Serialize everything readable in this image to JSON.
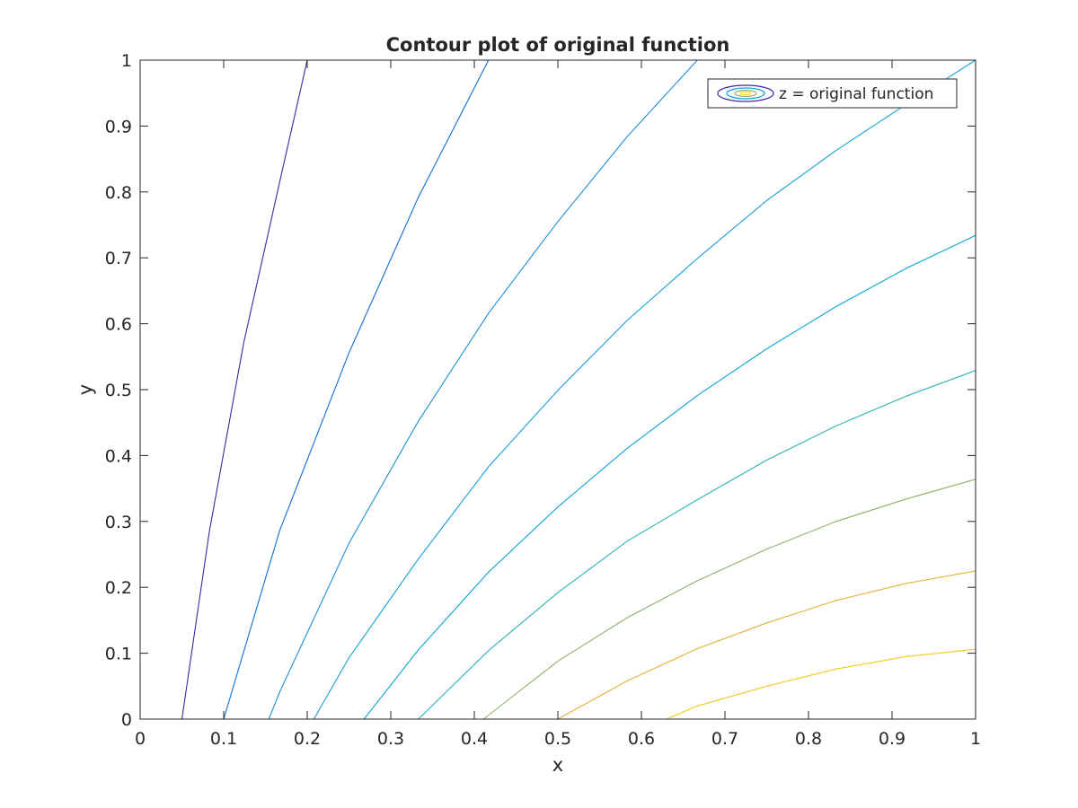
{
  "chart_data": {
    "type": "contour",
    "title": "Contour plot of original function",
    "xlabel": "x",
    "ylabel": "y",
    "xlim": [
      0,
      1
    ],
    "ylim": [
      0,
      1
    ],
    "xticks": [
      "0",
      "0.1",
      "0.2",
      "0.3",
      "0.4",
      "0.5",
      "0.6",
      "0.7",
      "0.8",
      "0.9",
      "1"
    ],
    "yticks": [
      "0",
      "0.1",
      "0.2",
      "0.3",
      "0.4",
      "0.5",
      "0.6",
      "0.7",
      "0.8",
      "0.9",
      "1"
    ],
    "grid": false,
    "legend": {
      "position": "top-right",
      "entries": [
        "z = original function"
      ]
    },
    "contours": [
      {
        "color": "#3e26a8",
        "points": [
          [
            0.05,
            0
          ],
          [
            0.083,
            0.286
          ],
          [
            0.124,
            0.571
          ],
          [
            0.167,
            0.815
          ],
          [
            0.2,
            1
          ]
        ]
      },
      {
        "color": "#0d6ed8",
        "points": [
          [
            0.1,
            0
          ],
          [
            0.167,
            0.286
          ],
          [
            0.25,
            0.556
          ],
          [
            0.333,
            0.792
          ],
          [
            0.417,
            1
          ]
        ]
      },
      {
        "color": "#1e8ed8",
        "points": [
          [
            0.154,
            0
          ],
          [
            0.167,
            0.041
          ],
          [
            0.25,
            0.267
          ],
          [
            0.333,
            0.452
          ],
          [
            0.417,
            0.616
          ],
          [
            0.5,
            0.755
          ],
          [
            0.583,
            0.884
          ],
          [
            0.667,
            1
          ]
        ]
      },
      {
        "color": "#14a0dd",
        "points": [
          [
            0.208,
            0
          ],
          [
            0.25,
            0.093
          ],
          [
            0.333,
            0.243
          ],
          [
            0.417,
            0.383
          ],
          [
            0.5,
            0.499
          ],
          [
            0.583,
            0.605
          ],
          [
            0.667,
            0.699
          ],
          [
            0.75,
            0.787
          ],
          [
            0.833,
            0.863
          ],
          [
            0.917,
            0.933
          ],
          [
            1,
            1
          ]
        ]
      },
      {
        "color": "#0ba5d8",
        "points": [
          [
            0.268,
            0
          ],
          [
            0.333,
            0.105
          ],
          [
            0.417,
            0.223
          ],
          [
            0.5,
            0.322
          ],
          [
            0.583,
            0.411
          ],
          [
            0.667,
            0.491
          ],
          [
            0.75,
            0.562
          ],
          [
            0.833,
            0.626
          ],
          [
            0.917,
            0.684
          ],
          [
            1,
            0.734
          ]
        ]
      },
      {
        "color": "#2ab4b8",
        "points": [
          [
            0.333,
            0
          ],
          [
            0.417,
            0.104
          ],
          [
            0.5,
            0.192
          ],
          [
            0.583,
            0.27
          ],
          [
            0.667,
            0.333
          ],
          [
            0.75,
            0.393
          ],
          [
            0.833,
            0.445
          ],
          [
            0.917,
            0.49
          ],
          [
            1,
            0.529
          ]
        ]
      },
      {
        "color": "#8db06a",
        "points": [
          [
            0.411,
            0
          ],
          [
            0.5,
            0.088
          ],
          [
            0.583,
            0.154
          ],
          [
            0.667,
            0.21
          ],
          [
            0.75,
            0.258
          ],
          [
            0.833,
            0.3
          ],
          [
            0.917,
            0.334
          ],
          [
            1,
            0.364
          ]
        ]
      },
      {
        "color": "#e8ae30",
        "points": [
          [
            0.5,
            0
          ],
          [
            0.583,
            0.058
          ],
          [
            0.667,
            0.107
          ],
          [
            0.75,
            0.146
          ],
          [
            0.833,
            0.18
          ],
          [
            0.917,
            0.206
          ],
          [
            1,
            0.225
          ]
        ]
      },
      {
        "color": "#f7c61f",
        "points": [
          [
            0.63,
            0
          ],
          [
            0.667,
            0.02
          ],
          [
            0.75,
            0.05
          ],
          [
            0.833,
            0.076
          ],
          [
            0.917,
            0.095
          ],
          [
            1,
            0.106
          ]
        ]
      }
    ]
  }
}
